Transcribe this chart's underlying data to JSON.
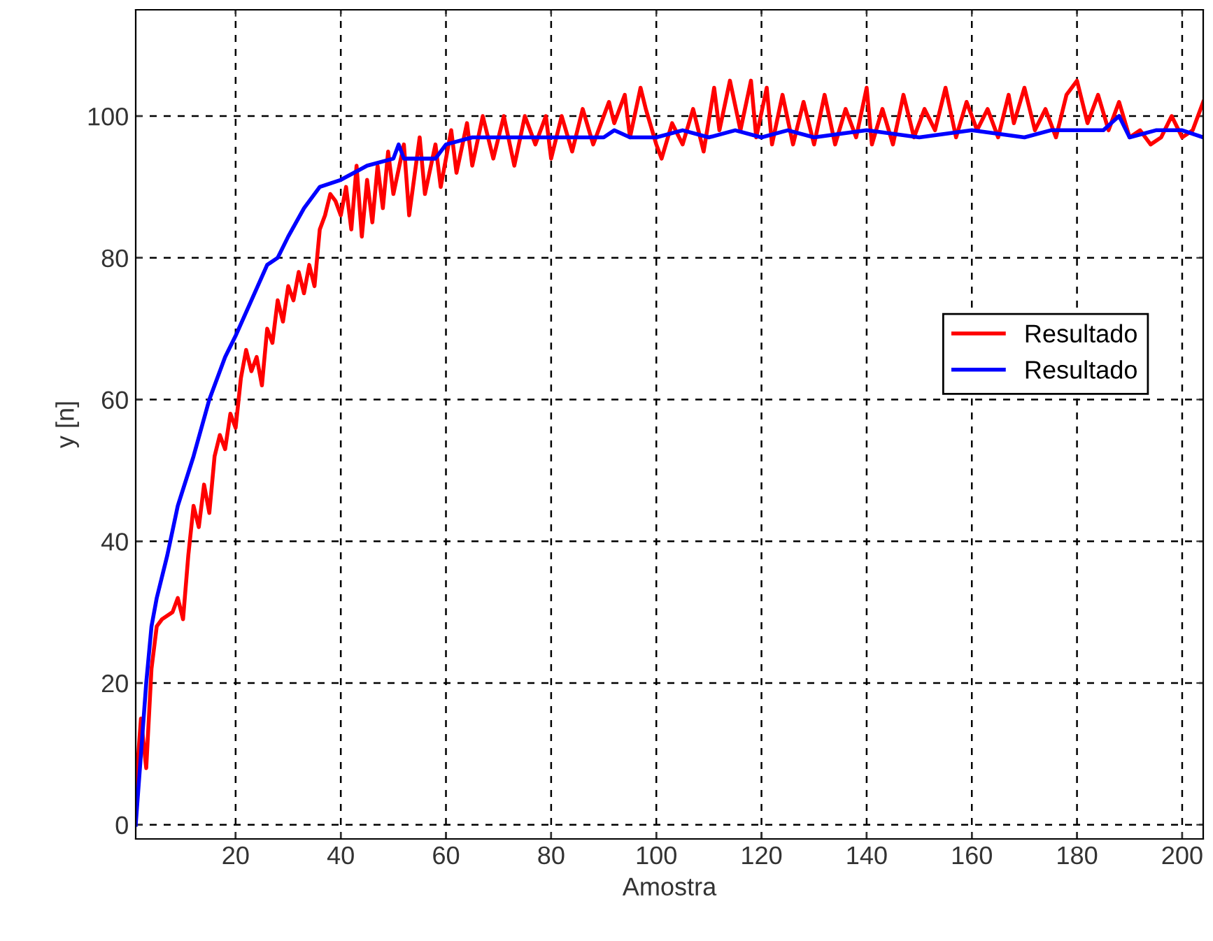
{
  "chart_data": {
    "type": "line",
    "xlabel": "Amostra",
    "ylabel": "y [n]",
    "xlim": [
      1,
      204
    ],
    "xticks": [
      20,
      40,
      60,
      80,
      100,
      120,
      140,
      160,
      180,
      200
    ],
    "ylim": [
      -2,
      115
    ],
    "yticks": [
      0,
      20,
      40,
      60,
      80,
      100
    ],
    "grid": true,
    "legend": "right",
    "line_style": "solid",
    "series": [
      {
        "name": "Resultado",
        "color": "#ff0000",
        "x": [
          1,
          2,
          3,
          4,
          5,
          6,
          8,
          9,
          10,
          11,
          12,
          13,
          14,
          15,
          16,
          17,
          18,
          19,
          20,
          21,
          22,
          23,
          24,
          25,
          26,
          27,
          28,
          29,
          30,
          31,
          32,
          33,
          34,
          35,
          36,
          37,
          38,
          39,
          40,
          41,
          42,
          43,
          44,
          45,
          46,
          47,
          48,
          49,
          50,
          52,
          53,
          55,
          56,
          58,
          59,
          61,
          62,
          64,
          65,
          67,
          69,
          71,
          73,
          75,
          77,
          79,
          80,
          82,
          84,
          86,
          88,
          90,
          91,
          92,
          94,
          95,
          97,
          98,
          100,
          101,
          103,
          105,
          107,
          109,
          111,
          112,
          114,
          116,
          118,
          119,
          121,
          122,
          124,
          126,
          128,
          130,
          132,
          134,
          136,
          138,
          140,
          141,
          143,
          145,
          147,
          149,
          151,
          153,
          155,
          157,
          159,
          161,
          163,
          165,
          167,
          168,
          170,
          172,
          174,
          176,
          178,
          180,
          182,
          184,
          186,
          188,
          190,
          192,
          194,
          196,
          198,
          200,
          202,
          204
        ],
        "values": [
          5,
          15,
          8,
          22,
          28,
          29,
          30,
          32,
          29,
          38,
          45,
          42,
          48,
          44,
          52,
          55,
          53,
          58,
          56,
          63,
          67,
          64,
          66,
          62,
          70,
          68,
          74,
          71,
          76,
          74,
          78,
          75,
          79,
          76,
          84,
          86,
          89,
          88,
          86,
          90,
          84,
          93,
          83,
          91,
          85,
          93,
          87,
          95,
          89,
          96,
          86,
          97,
          89,
          96,
          90,
          98,
          92,
          99,
          93,
          100,
          94,
          100,
          93,
          100,
          96,
          100,
          94,
          100,
          95,
          101,
          96,
          100,
          102,
          99,
          103,
          97,
          104,
          101,
          96,
          94,
          99,
          96,
          101,
          95,
          104,
          98,
          105,
          98,
          105,
          97,
          104,
          96,
          103,
          96,
          102,
          96,
          103,
          96,
          101,
          97,
          104,
          96,
          101,
          96,
          103,
          97,
          101,
          98,
          104,
          97,
          102,
          98,
          101,
          97,
          103,
          99,
          104,
          98,
          101,
          97,
          103,
          105,
          99,
          103,
          98,
          102,
          97,
          98,
          96,
          97,
          100,
          97,
          98,
          102
        ]
      },
      {
        "name": "Resultado",
        "color": "#0000ff",
        "x": [
          1,
          2,
          3,
          4,
          5,
          7,
          9,
          12,
          15,
          18,
          20,
          23,
          26,
          28,
          30,
          33,
          36,
          40,
          45,
          50,
          51,
          52,
          58,
          60,
          65,
          75,
          90,
          92,
          95,
          100,
          105,
          110,
          115,
          120,
          125,
          130,
          140,
          150,
          160,
          170,
          175,
          180,
          185,
          188,
          190,
          195,
          200,
          204
        ],
        "values": [
          0,
          10,
          20,
          28,
          32,
          38,
          45,
          52,
          60,
          66,
          69,
          74,
          79,
          80,
          83,
          87,
          90,
          91,
          93,
          94,
          96,
          94,
          94,
          96,
          97,
          97,
          97,
          98,
          97,
          97,
          98,
          97,
          98,
          97,
          98,
          97,
          98,
          97,
          98,
          97,
          98,
          98,
          98,
          100,
          97,
          98,
          98,
          97
        ]
      }
    ]
  }
}
